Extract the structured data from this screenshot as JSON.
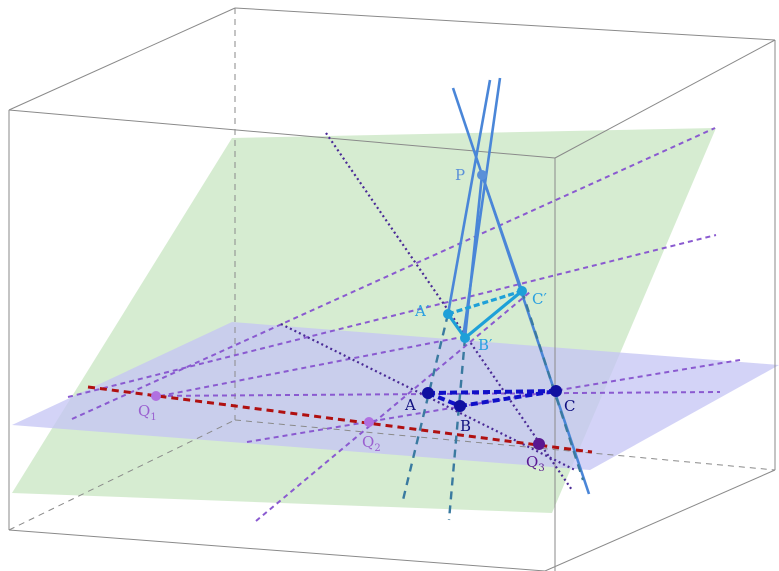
{
  "labels": {
    "P": "P",
    "A_prime": "A′",
    "B_prime": "B′",
    "C_prime": "C′",
    "A": "A",
    "B": "B",
    "C": "C",
    "Q1": "Q",
    "Q1_sub": "1",
    "Q2": "Q",
    "Q2_sub": "2",
    "Q3": "Q",
    "Q3_sub": "3"
  },
  "colors": {
    "green_plane": "#cfe9c9",
    "blue_plane": "#c4c4f4",
    "box_edge": "#8a8a8a",
    "projection_lines": "#4a86d8",
    "image_triangle": "#1ea0d8",
    "base_triangle": "#1010c8",
    "construction_lines": "#8a5ad0",
    "axis_line": "#b01010",
    "image_labels": "#2aa0e0",
    "base_labels": "#101080",
    "q_labels": "#9a60d0",
    "p_label": "#5a90d8"
  }
}
